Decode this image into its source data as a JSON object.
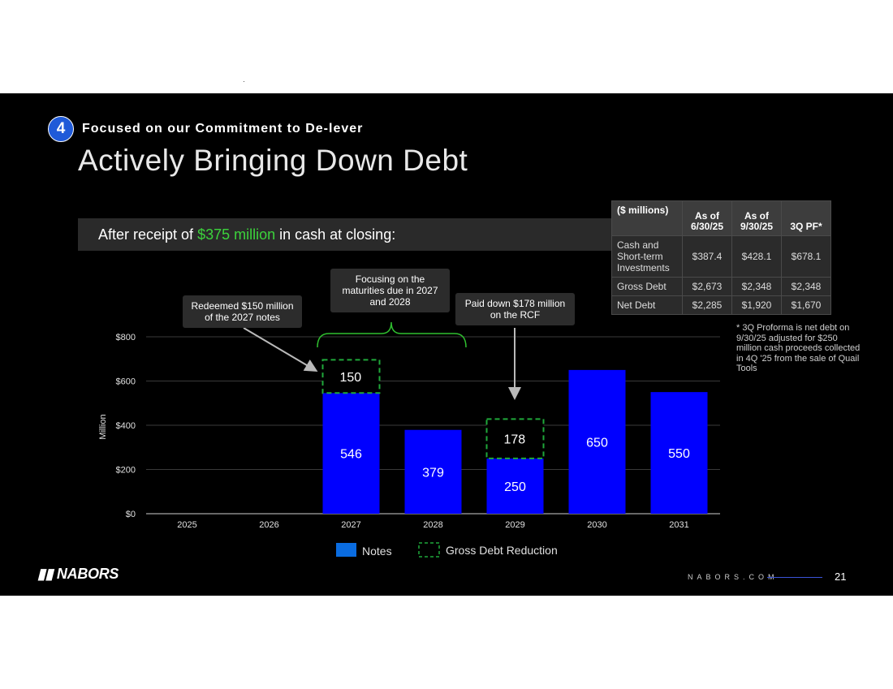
{
  "header": {
    "badge": "4",
    "kicker": "Focused on our Commitment to De-lever",
    "title": "Actively Bringing Down Debt"
  },
  "banner": {
    "prefix": "After receipt of ",
    "highlight": "$375 million",
    "suffix": " in cash at closing:",
    "highlight_color": "#3cd33c"
  },
  "table": {
    "headers": [
      "($ millions)",
      "As of 6/30/25",
      "As of 9/30/25",
      "3Q PF*"
    ],
    "rows": [
      {
        "label": "Cash and Short-term Investments",
        "values": [
          "$387.4",
          "$428.1",
          "$678.1"
        ]
      },
      {
        "label": "Gross Debt",
        "values": [
          "$2,673",
          "$2,348",
          "$2,348"
        ]
      },
      {
        "label": "Net Debt",
        "values": [
          "$2,285",
          "$1,920",
          "$1,670"
        ]
      }
    ]
  },
  "footnote": "* 3Q Proforma is net debt on 9/30/25 adjusted for $250 million cash proceeds collected in 4Q '25 from the sale of Quail Tools",
  "callouts": {
    "redeemed": "Redeemed $150 million of the 2027 notes",
    "focusing": "Focusing on the maturities due in 2027 and 2028",
    "paid": "Paid down $178 million on the RCF"
  },
  "chart_data": {
    "type": "bar",
    "categories": [
      "2025",
      "2026",
      "2027",
      "2028",
      "2029",
      "2030",
      "2031"
    ],
    "series": [
      {
        "name": "Notes",
        "values": [
          0,
          0,
          546,
          379,
          250,
          650,
          550
        ]
      },
      {
        "name": "Gross Debt Reduction",
        "values": [
          0,
          0,
          150,
          0,
          178,
          0,
          0
        ]
      }
    ],
    "ylabel": "Million",
    "ylim": [
      0,
      800
    ],
    "yticks": [
      0,
      200,
      400,
      600,
      800
    ],
    "ytick_labels": [
      "$0",
      "$200",
      "$400",
      "$600",
      "$800"
    ],
    "grid": true,
    "legend_position": "bottom",
    "colors": {
      "notes": "#0000ff",
      "reduction_border": "#1fa83a",
      "legend_notes": "#0a6ce0"
    }
  },
  "footer": {
    "logo": "NABORS",
    "site": "NABORS.COM",
    "page": "21"
  }
}
